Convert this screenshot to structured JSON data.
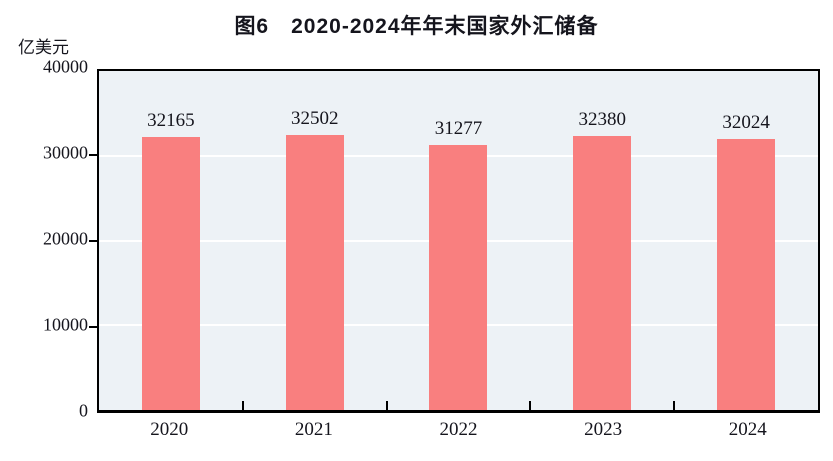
{
  "figure": {
    "title": "图6　2020-2024年年末国家外汇储备",
    "unit_label": "亿美元"
  },
  "chart_data": {
    "type": "bar",
    "title": "图6　2020-2024年年末国家外汇储备",
    "subtitle": "",
    "xlabel": "",
    "ylabel": "亿美元",
    "categories": [
      "2020",
      "2021",
      "2022",
      "2023",
      "2024"
    ],
    "values": [
      32165,
      32502,
      31277,
      32380,
      32024
    ],
    "data_labels_shown": true,
    "ylim": [
      0,
      40000
    ],
    "yticks": [
      0,
      10000,
      20000,
      30000,
      40000
    ],
    "gridline_values": [
      10000,
      20000,
      30000
    ],
    "grid": "horizontal",
    "legend": null,
    "colors": {
      "bar": "#F97F7F",
      "plot_background": "#EDF2F6",
      "gridline": "#FFFFFF",
      "axis": "#000000",
      "text": "#15151D",
      "page_background": "#FFFFFF"
    }
  }
}
